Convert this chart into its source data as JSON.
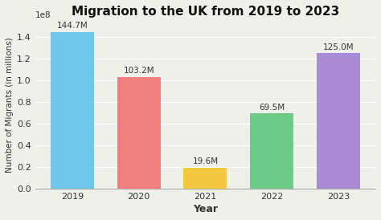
{
  "title": "Migration to the UK from 2019 to 2023",
  "xlabel": "Year",
  "ylabel": "Number of Migrants (in millions)",
  "categories": [
    "2019",
    "2020",
    "2021",
    "2022",
    "2023"
  ],
  "values": [
    144700000,
    103200000,
    19600000,
    69500000,
    125000000
  ],
  "labels": [
    "144.7M",
    "103.2M",
    "19.6M",
    "69.5M",
    "125.0M"
  ],
  "bar_colors": [
    "#6EC6EA",
    "#F08080",
    "#F5C842",
    "#6ECB8A",
    "#A98BD6"
  ],
  "background_color": "#F0F0EB",
  "ylim": [
    0,
    155000000.0
  ],
  "grid_color": "#FFFFFF",
  "title_fontsize": 11,
  "label_fontsize": 7.5,
  "axis_label_fontsize": 9,
  "tick_fontsize": 8
}
